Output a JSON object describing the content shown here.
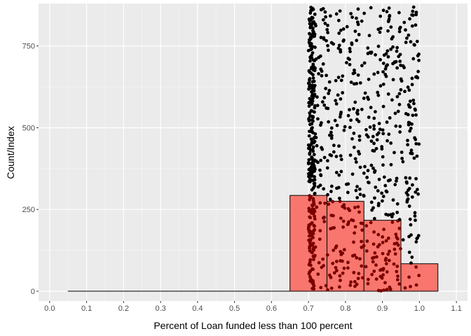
{
  "chart_data": {
    "type": "bar",
    "subtype": "histogram-with-jittered-scatter",
    "title": "",
    "xlabel": "Percent of Loan funded less than 100 percent",
    "ylabel": "Count/Index",
    "xlim": [
      -0.03,
      1.13
    ],
    "ylim": [
      -30,
      880
    ],
    "x_ticks": [
      0.0,
      0.1,
      0.2,
      0.3,
      0.4,
      0.5,
      0.6,
      0.7,
      0.8,
      0.9,
      1.0,
      1.1
    ],
    "x_tick_labels": [
      "0.0",
      "0.1",
      "0.2",
      "0.3",
      "0.4",
      "0.5",
      "0.6",
      "0.7",
      "0.8",
      "0.9",
      "1.0",
      "1.1"
    ],
    "y_ticks": [
      0,
      250,
      500,
      750
    ],
    "y_tick_labels": [
      "0",
      "250",
      "500",
      "750"
    ],
    "grid": true,
    "histogram": {
      "fill_color": "#f8766d",
      "outline_color": "#000000",
      "bins": [
        {
          "xmin": 0.05,
          "xmax": 0.15,
          "count": 0
        },
        {
          "xmin": 0.15,
          "xmax": 0.25,
          "count": 0
        },
        {
          "xmin": 0.25,
          "xmax": 0.35,
          "count": 0
        },
        {
          "xmin": 0.35,
          "xmax": 0.45,
          "count": 0
        },
        {
          "xmin": 0.45,
          "xmax": 0.55,
          "count": 0
        },
        {
          "xmin": 0.55,
          "xmax": 0.65,
          "count": 0
        },
        {
          "xmin": 0.65,
          "xmax": 0.75,
          "count": 293
        },
        {
          "xmin": 0.75,
          "xmax": 0.85,
          "count": 275
        },
        {
          "xmin": 0.85,
          "xmax": 0.95,
          "count": 217
        },
        {
          "xmin": 0.95,
          "xmax": 1.05,
          "count": 84
        }
      ]
    },
    "scatter": {
      "point_color": "#000000",
      "overlay_point_color": "#7a0000",
      "x_range": [
        0.7,
        1.0
      ],
      "index_range": [
        1,
        869
      ],
      "point_count": 869,
      "density_note": "points denser near x = 0.7, roughly uniform over index"
    },
    "panel_background": "#ebebeb",
    "grid_color": "#ffffff"
  }
}
